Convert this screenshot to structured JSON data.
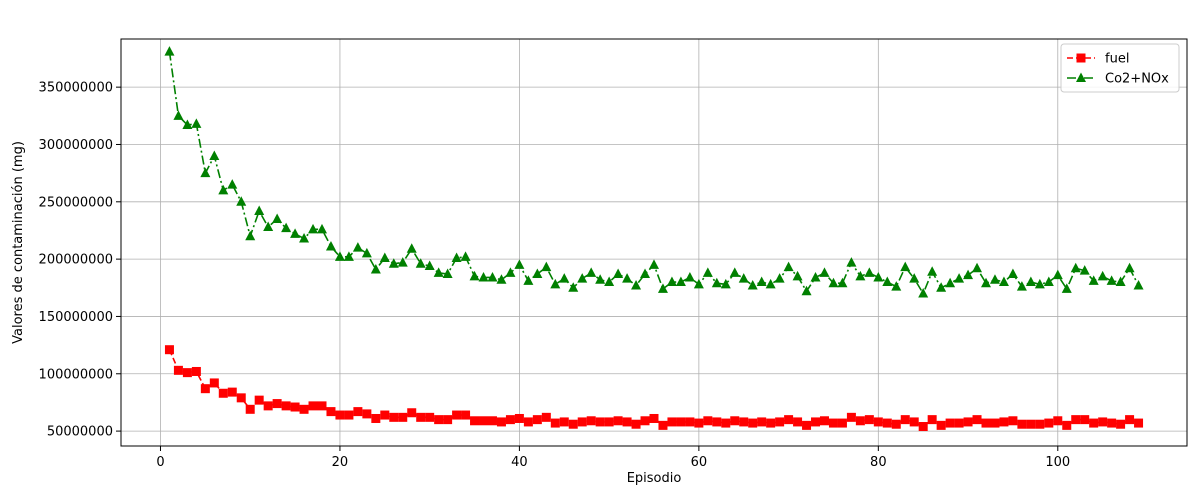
{
  "chart_data": {
    "type": "line",
    "title": "",
    "xlabel": "Episodio",
    "ylabel": "Valores de contaminación (mg)",
    "xlim": [
      -4.4,
      114.4
    ],
    "ylim": [
      37000000,
      392000000
    ],
    "xticks": [
      0,
      20,
      40,
      60,
      80,
      100
    ],
    "yticks": [
      50000000,
      100000000,
      150000000,
      200000000,
      250000000,
      300000000,
      350000000
    ],
    "grid": true,
    "legend_position": "top-right",
    "x": [
      1,
      2,
      3,
      4,
      5,
      6,
      7,
      8,
      9,
      10,
      11,
      12,
      13,
      14,
      15,
      16,
      17,
      18,
      19,
      20,
      21,
      22,
      23,
      24,
      25,
      26,
      27,
      28,
      29,
      30,
      31,
      32,
      33,
      34,
      35,
      36,
      37,
      38,
      39,
      40,
      41,
      42,
      43,
      44,
      45,
      46,
      47,
      48,
      49,
      50,
      51,
      52,
      53,
      54,
      55,
      56,
      57,
      58,
      59,
      60,
      61,
      62,
      63,
      64,
      65,
      66,
      67,
      68,
      69,
      70,
      71,
      72,
      73,
      74,
      75,
      76,
      77,
      78,
      79,
      80,
      81,
      82,
      83,
      84,
      85,
      86,
      87,
      88,
      89,
      90,
      91,
      92,
      93,
      94,
      95,
      96,
      97,
      98,
      99,
      100,
      101,
      102,
      103,
      104,
      105,
      106,
      107,
      108,
      109
    ],
    "series": [
      {
        "name": "fuel",
        "color": "#ff0000",
        "marker": "square",
        "linestyle": "dashed",
        "values": [
          121000000,
          103000000,
          101000000,
          102000000,
          87000000,
          92000000,
          83000000,
          84000000,
          79000000,
          69000000,
          77000000,
          72000000,
          74000000,
          72000000,
          71000000,
          69000000,
          72000000,
          72000000,
          67000000,
          64000000,
          64000000,
          67000000,
          65000000,
          61000000,
          64000000,
          62000000,
          62000000,
          66000000,
          62000000,
          62000000,
          60000000,
          60000000,
          64000000,
          64000000,
          59000000,
          59000000,
          59000000,
          58000000,
          60000000,
          61000000,
          58000000,
          60000000,
          62000000,
          57000000,
          58000000,
          56000000,
          58000000,
          59000000,
          58000000,
          58000000,
          59000000,
          58000000,
          56000000,
          59000000,
          61000000,
          55000000,
          58000000,
          58000000,
          58000000,
          57000000,
          59000000,
          58000000,
          57000000,
          59000000,
          58000000,
          57000000,
          58000000,
          57000000,
          58000000,
          60000000,
          58000000,
          55000000,
          58000000,
          59000000,
          57000000,
          57000000,
          62000000,
          59000000,
          60000000,
          58000000,
          57000000,
          56000000,
          60000000,
          58000000,
          54000000,
          60000000,
          55000000,
          57000000,
          57000000,
          58000000,
          60000000,
          57000000,
          57000000,
          58000000,
          59000000,
          56000000,
          56000000,
          56000000,
          57000000,
          59000000,
          55000000,
          60000000,
          60000000,
          57000000,
          58000000,
          57000000,
          56000000,
          60000000,
          57000000
        ]
      },
      {
        "name": "Co2+NOx",
        "color": "#008000",
        "marker": "triangle",
        "linestyle": "dashdot",
        "values": [
          381000000,
          325000000,
          317000000,
          318000000,
          275000000,
          290000000,
          260000000,
          265000000,
          250000000,
          220000000,
          242000000,
          228000000,
          235000000,
          227000000,
          222000000,
          218000000,
          226000000,
          226000000,
          211000000,
          202000000,
          202000000,
          210000000,
          205000000,
          191000000,
          201000000,
          196000000,
          197000000,
          209000000,
          196000000,
          194000000,
          188000000,
          187000000,
          201000000,
          202000000,
          185000000,
          184000000,
          184000000,
          182000000,
          188000000,
          195000000,
          181000000,
          187000000,
          193000000,
          178000000,
          183000000,
          175000000,
          183000000,
          188000000,
          182000000,
          180000000,
          187000000,
          183000000,
          177000000,
          187000000,
          195000000,
          174000000,
          180000000,
          180000000,
          184000000,
          178000000,
          188000000,
          179000000,
          178000000,
          188000000,
          183000000,
          177000000,
          180000000,
          178000000,
          183000000,
          193000000,
          185000000,
          172000000,
          184000000,
          188000000,
          179000000,
          179000000,
          197000000,
          185000000,
          188000000,
          184000000,
          180000000,
          176000000,
          193000000,
          183000000,
          170000000,
          189000000,
          175000000,
          179000000,
          183000000,
          186000000,
          192000000,
          179000000,
          182000000,
          180000000,
          187000000,
          176000000,
          180000000,
          178000000,
          180000000,
          186000000,
          174000000,
          192000000,
          190000000,
          181000000,
          185000000,
          181000000,
          180000000,
          192000000,
          177000000
        ]
      }
    ]
  }
}
